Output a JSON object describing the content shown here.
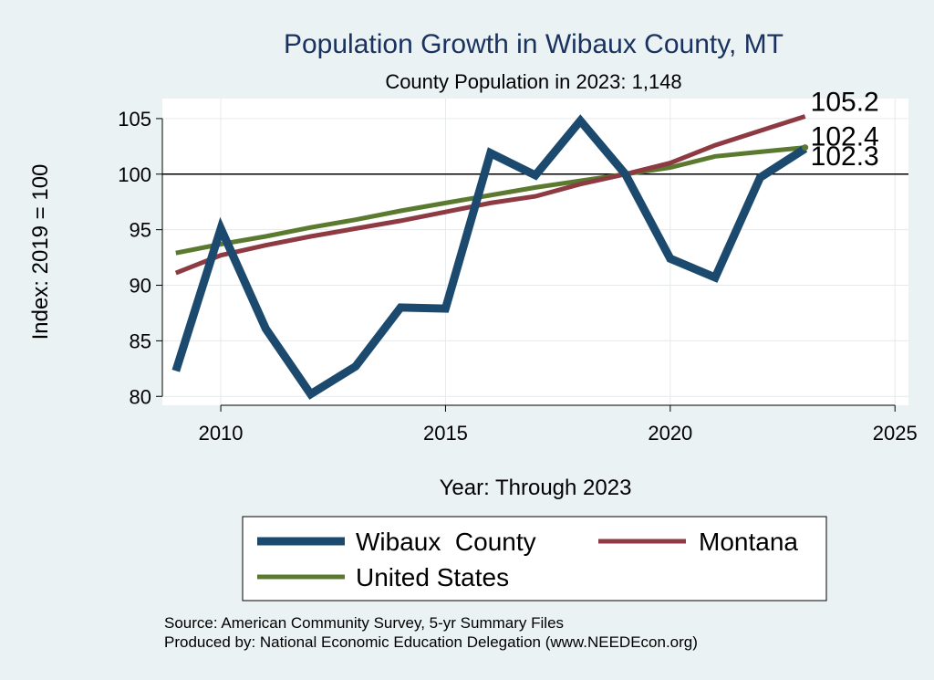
{
  "chart_data": {
    "type": "line",
    "title": "Population Growth in Wibaux County, MT",
    "subtitle": "County Population in 2023: 1,148",
    "xlabel": "Year: Through 2023",
    "ylabel": "Index: 2019 = 100",
    "xlim": [
      2008.7,
      2025.3
    ],
    "ylim": [
      79.2,
      106.8
    ],
    "xticks": [
      2010,
      2015,
      2020,
      2025
    ],
    "yticks": [
      80,
      85,
      90,
      95,
      100,
      105
    ],
    "reference_line": 100,
    "grid": true,
    "legend_position": "bottom",
    "x": [
      2009,
      2010,
      2011,
      2012,
      2013,
      2014,
      2015,
      2016,
      2017,
      2018,
      2019,
      2020,
      2021,
      2022,
      2023
    ],
    "series": [
      {
        "name": "Wibaux  County",
        "color": "#1b4a6e",
        "width": 9,
        "values": [
          82.3,
          95.1,
          86.1,
          80.2,
          82.7,
          88.0,
          87.9,
          101.9,
          99.9,
          104.8,
          100.0,
          92.4,
          90.7,
          99.7,
          102.3
        ],
        "end_label": "102.3"
      },
      {
        "name": "Montana",
        "color": "#8d3a43",
        "width": 5,
        "values": [
          91.1,
          92.7,
          93.6,
          94.4,
          95.1,
          95.8,
          96.6,
          97.4,
          98.0,
          99.1,
          100.0,
          101.0,
          102.6,
          103.9,
          105.2
        ],
        "end_label": "105.2"
      },
      {
        "name": "United States",
        "color": "#5b7a30",
        "width": 5,
        "values": [
          92.9,
          93.7,
          94.4,
          95.2,
          95.9,
          96.7,
          97.4,
          98.1,
          98.8,
          99.4,
          100.0,
          100.6,
          101.6,
          102.0,
          102.4
        ],
        "end_label": "102.4"
      }
    ],
    "source_lines": [
      "Source: American Community Survey, 5-yr Summary Files",
      "Produced by: National Economic Education Delegation (www.NEEDEcon.org)"
    ]
  }
}
